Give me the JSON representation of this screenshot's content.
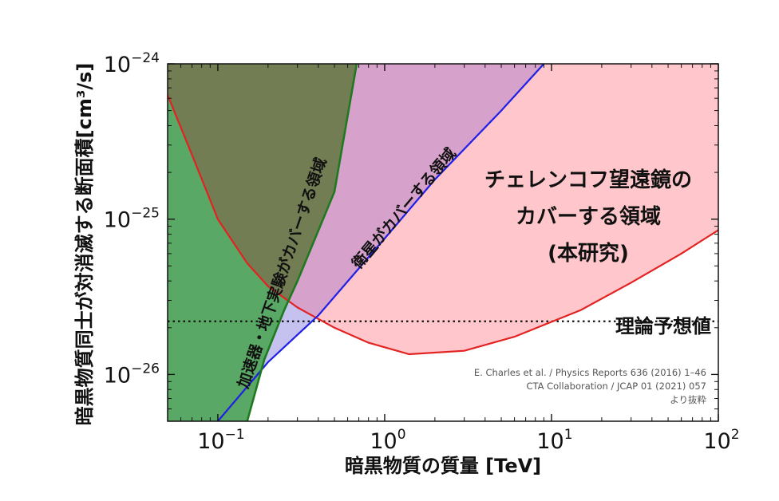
{
  "chart_data": {
    "type": "area",
    "x_scale": "log",
    "y_scale": "log",
    "xlim": [
      0.05,
      100
    ],
    "ylim": [
      5e-27,
      1e-24
    ],
    "x_ticks": [
      {
        "value": 0.1,
        "base": "10",
        "exp": "−1"
      },
      {
        "value": 1,
        "base": "10",
        "exp": "0"
      },
      {
        "value": 10,
        "base": "10",
        "exp": "1"
      },
      {
        "value": 100,
        "base": "10",
        "exp": "2"
      }
    ],
    "y_ticks": [
      {
        "value": 1e-26,
        "base": "10",
        "exp": "−26"
      },
      {
        "value": 1e-25,
        "base": "10",
        "exp": "−25"
      },
      {
        "value": 1e-24,
        "base": "10",
        "exp": "−24"
      }
    ],
    "xlabel": "暗黒物質の質量 [TeV]",
    "ylabel": "暗黒物質同士が対消滅する断面積[cm³/s]",
    "colors": {
      "accelerator_fill": "#5aa865",
      "accelerator_line": "#1e7a1e",
      "satellite_fill": "#b07fd6",
      "satellite_line": "#1f1fe6",
      "cta_fill": "#ffc7cb",
      "cta_line": "#e32222",
      "olive_overlap": "#727d53",
      "purple_overlap": "#d6a1cb",
      "lavender_overlap": "#c5c2f0",
      "theory_line": "#111111"
    },
    "series": {
      "accelerator": {
        "label": "加速器・地下実験がカバーする領域",
        "x": [
          0.15,
          0.19,
          0.25,
          0.3,
          0.5,
          0.68
        ],
        "y": [
          5e-27,
          1.25e-26,
          2.6e-26,
          4e-26,
          1.5e-25,
          1e-24
        ]
      },
      "satellite": {
        "label": "衛星がカバーする領域",
        "x": [
          0.1,
          0.2,
          0.4,
          1,
          2,
          5,
          9
        ],
        "y": [
          5e-27,
          1.2e-26,
          2.4e-26,
          7.5e-26,
          1.8e-25,
          5e-25,
          1e-24
        ]
      },
      "cta": {
        "label_lines": [
          "チェレンコフ望遠鏡の",
          "カバーする領域",
          "(本研究)"
        ],
        "x": [
          0.05,
          0.07,
          0.1,
          0.15,
          0.2,
          0.3,
          0.5,
          0.8,
          1.4,
          3,
          6,
          15,
          30,
          60,
          100
        ],
        "y": [
          6.3e-25,
          2.6e-25,
          1e-25,
          5.2e-26,
          3.7e-26,
          2.7e-26,
          2e-26,
          1.6e-26,
          1.35e-26,
          1.42e-26,
          1.75e-26,
          2.6e-26,
          3.9e-26,
          6e-26,
          8.5e-26
        ]
      },
      "theory": {
        "label": "理論予想値",
        "y": 2.2e-26
      }
    }
  },
  "credits": [
    "E. Charles et al. / Physics Reports 636 (2016) 1–46",
    "CTA Collaboration / JCAP 01 (2021) 057",
    "より抜粋"
  ]
}
